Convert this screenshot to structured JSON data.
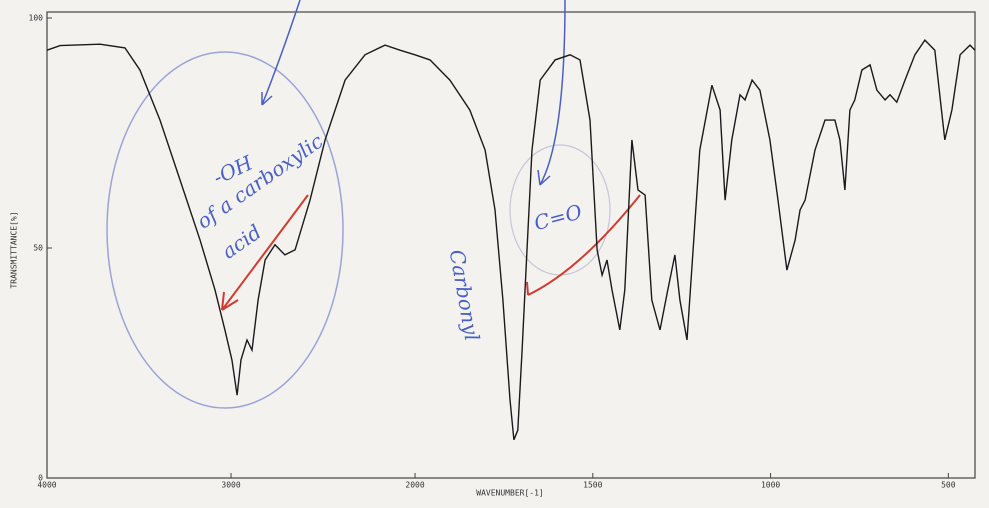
{
  "chart_data": {
    "type": "line",
    "x_label": "WAVENUMBER[-1]",
    "y_label": "TRANSMITTANCE[%]",
    "annotations": [
      "-OH",
      "of a carboxylic",
      "acid",
      "Carbonyl",
      "C=O"
    ],
    "x": [
      4000,
      3929,
      3712,
      3576,
      3495,
      3386,
      3277,
      3168,
      3087,
      3033,
      2995,
      2967,
      2946,
      2913,
      2886,
      2853,
      2815,
      2761,
      2707,
      2652,
      2571,
      2489,
      2380,
      2272,
      2163,
      2082,
      2000,
      1958,
      1902,
      1846,
      1803,
      1775,
      1753,
      1733,
      1722,
      1711,
      1699,
      1685,
      1671,
      1648,
      1606,
      1564,
      1536,
      1508,
      1488,
      1474,
      1460,
      1446,
      1424,
      1410,
      1390,
      1373,
      1353,
      1334,
      1311,
      1289,
      1269,
      1255,
      1235,
      1218,
      1199,
      1165,
      1142,
      1128,
      1109,
      1086,
      1072,
      1052,
      1030,
      1002,
      979,
      954,
      931,
      917,
      903,
      875,
      847,
      819,
      805,
      791,
      777,
      763,
      743,
      720,
      701,
      678,
      664,
      645,
      622,
      594,
      566,
      538,
      510,
      490,
      467,
      439,
      425
    ],
    "series": [
      {
        "color": "#1a1a1a",
        "values": [
          93,
          94,
          94.3,
          93.5,
          88.7,
          77.8,
          64.8,
          51.7,
          40.9,
          32.2,
          25.7,
          18,
          25.7,
          30,
          27.8,
          38.7,
          47.4,
          50.7,
          48.5,
          49.6,
          60.4,
          73.5,
          86.5,
          92,
          94.1,
          93,
          92,
          90.9,
          86.5,
          80,
          71.3,
          58.3,
          38.7,
          17,
          8.3,
          10.4,
          27.8,
          49.6,
          71.3,
          86.5,
          90.9,
          92,
          90.9,
          77.8,
          49.6,
          44.1,
          47.4,
          40.9,
          32.2,
          40.9,
          73.5,
          62.6,
          61.5,
          38.7,
          32.2,
          40.9,
          48.5,
          38.7,
          30,
          49.6,
          71.3,
          85.4,
          80,
          60.4,
          73.5,
          83.3,
          82.2,
          86.5,
          84.3,
          73.5,
          60.4,
          45.2,
          51.7,
          58.3,
          60.4,
          71.3,
          77.8,
          77.8,
          73.5,
          62.6,
          80,
          82.2,
          88.7,
          89.8,
          84.3,
          82.2,
          83.3,
          81.7,
          86.5,
          92,
          95.2,
          93,
          73.5,
          80,
          92,
          94.1,
          93
        ]
      }
    ],
    "xlim": [
      4000,
      425
    ],
    "x_scale_break": 2000,
    "xticks": [
      4000,
      3000,
      2000,
      1500,
      1000,
      500
    ],
    "ylim": [
      0,
      100
    ],
    "yticks": [
      0,
      50,
      100
    ]
  }
}
